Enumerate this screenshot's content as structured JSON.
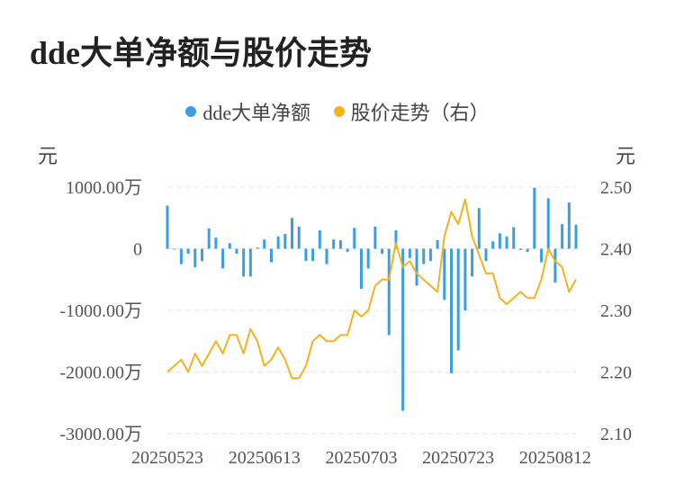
{
  "title": "dde大单净额与股价走势",
  "legend": {
    "items": [
      {
        "label": "dde大单净额",
        "color": "#3a9ee6"
      },
      {
        "label": "股价走势（右）",
        "color": "#f5b21f"
      }
    ]
  },
  "axis_units": {
    "left": "元",
    "right": "元"
  },
  "chart_data": {
    "type": "bar+line",
    "x_tick_labels": [
      "20250523",
      "20250613",
      "20250703",
      "20250723",
      "20250812"
    ],
    "x_tick_indices": [
      0,
      14,
      28,
      42,
      56
    ],
    "left_axis": {
      "min": -3000,
      "max": 1000,
      "ticks": [
        {
          "value": 1000,
          "label": "1000.00万"
        },
        {
          "value": 0,
          "label": "0"
        },
        {
          "value": -1000,
          "label": "-1000.00万"
        },
        {
          "value": -2000,
          "label": "-2000.00万"
        },
        {
          "value": -3000,
          "label": "-3000.00万"
        }
      ]
    },
    "right_axis": {
      "min": 2.1,
      "max": 2.5,
      "ticks": [
        {
          "value": 2.5,
          "label": "2.50"
        },
        {
          "value": 2.4,
          "label": "2.40"
        },
        {
          "value": 2.3,
          "label": "2.30"
        },
        {
          "value": 2.2,
          "label": "2.20"
        },
        {
          "value": 2.1,
          "label": "2.10"
        }
      ]
    },
    "grid": true,
    "series": [
      {
        "type": "bar",
        "axis": "left",
        "color": "#3a9ee6",
        "values": [
          700,
          -10,
          -250,
          -80,
          -300,
          -200,
          330,
          180,
          -320,
          90,
          -80,
          -450,
          -450,
          20,
          150,
          -220,
          200,
          240,
          500,
          360,
          -200,
          -200,
          300,
          -250,
          150,
          140,
          -50,
          340,
          -650,
          -320,
          360,
          -80,
          -1400,
          300,
          -2630,
          -150,
          -600,
          -250,
          -200,
          140,
          -830,
          -2020,
          -1650,
          -1000,
          -450,
          660,
          -200,
          120,
          250,
          200,
          350,
          -20,
          -50,
          990,
          -220,
          820,
          -550,
          400,
          750,
          390
        ]
      },
      {
        "type": "line",
        "axis": "right",
        "color": "#f5b21f",
        "values": [
          2.2,
          2.21,
          2.22,
          2.2,
          2.23,
          2.21,
          2.23,
          2.25,
          2.23,
          2.26,
          2.26,
          2.23,
          2.27,
          2.25,
          2.21,
          2.22,
          2.24,
          2.22,
          2.19,
          2.19,
          2.21,
          2.25,
          2.26,
          2.25,
          2.25,
          2.26,
          2.26,
          2.3,
          2.29,
          2.3,
          2.34,
          2.35,
          2.35,
          2.41,
          2.37,
          2.38,
          2.36,
          2.35,
          2.34,
          2.33,
          2.42,
          2.46,
          2.44,
          2.48,
          2.42,
          2.39,
          2.36,
          2.36,
          2.32,
          2.31,
          2.32,
          2.33,
          2.32,
          2.32,
          2.35,
          2.4,
          2.38,
          2.37,
          2.33,
          2.35
        ]
      }
    ]
  }
}
